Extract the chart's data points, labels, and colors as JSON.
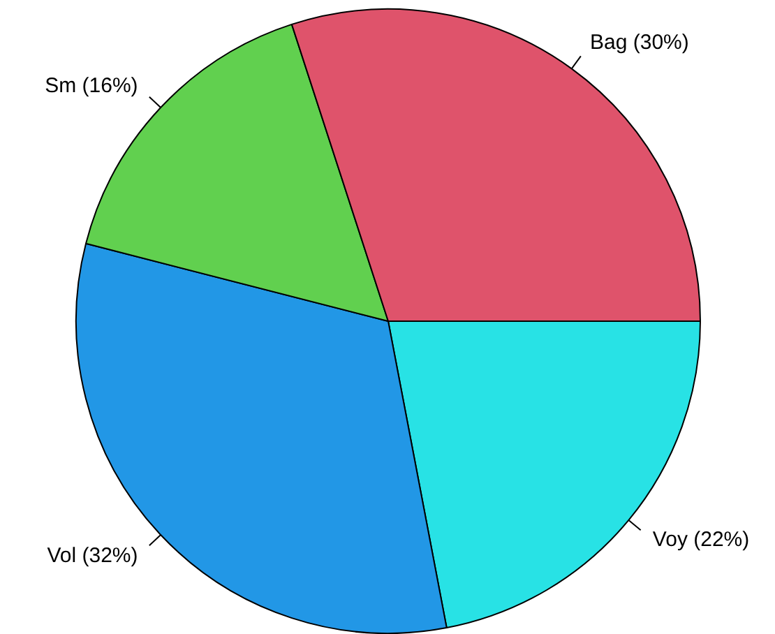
{
  "chart_data": {
    "type": "pie",
    "categories": [
      "Voy (22%)",
      "Vol (32%)",
      "Sm (16%)",
      "Bag (30%)"
    ],
    "values": [
      22,
      32,
      16,
      30
    ],
    "colors": [
      "#28e2e5",
      "#2297e6",
      "#61d04f",
      "#df536b"
    ]
  }
}
